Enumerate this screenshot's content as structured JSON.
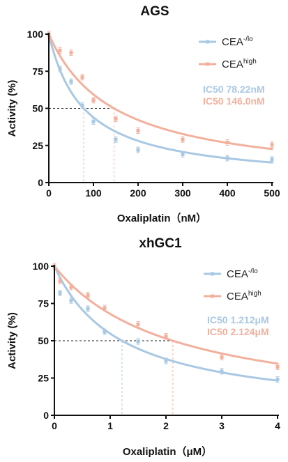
{
  "colors": {
    "low": "#a9c8e3",
    "high": "#f3b09c",
    "axis": "#111111"
  },
  "chart_data": [
    {
      "type": "scatter",
      "title": "AGS",
      "xlabel": "Oxaliplatin（nM）",
      "ylabel": "Activity (%)",
      "xlim": [
        0,
        500
      ],
      "ylim": [
        0,
        100
      ],
      "xticks": [
        "0",
        "100",
        "200",
        "300",
        "400",
        "500"
      ],
      "yticks": [
        "0",
        "25",
        "50",
        "75",
        "100"
      ],
      "legend_position": "top-right",
      "series": [
        {
          "name": "CEA",
          "sup": "-/lo",
          "color": "low",
          "ic50": 78.22,
          "ic50_label": "IC50 78.22nM",
          "points": [
            [
              0,
              100
            ],
            [
              25,
              76.5
            ],
            [
              50,
              68
            ],
            [
              75,
              52
            ],
            [
              100,
              41
            ],
            [
              150,
              29
            ],
            [
              200,
              22
            ],
            [
              300,
              19
            ],
            [
              400,
              16.5
            ],
            [
              500,
              15.5
            ]
          ]
        },
        {
          "name": "CEA",
          "sup": "high",
          "color": "high",
          "ic50": 146.0,
          "ic50_label": "IC50 146.0nM",
          "points": [
            [
              0,
              100
            ],
            [
              25,
              89
            ],
            [
              50,
              87.5
            ],
            [
              75,
              71
            ],
            [
              100,
              55.5
            ],
            [
              150,
              43
            ],
            [
              200,
              35
            ],
            [
              300,
              29
            ],
            [
              400,
              27
            ],
            [
              500,
              25.5
            ]
          ]
        }
      ]
    },
    {
      "type": "scatter",
      "title": "xhGC1",
      "xlabel": "Oxaliplatin（μM）",
      "ylabel": "Activity (%)",
      "xlim": [
        0,
        4
      ],
      "ylim": [
        0,
        100
      ],
      "xticks": [
        "0",
        "1",
        "2",
        "3",
        "4"
      ],
      "yticks": [
        "0",
        "25",
        "50",
        "75",
        "100"
      ],
      "legend_position": "top-right",
      "series": [
        {
          "name": "CEA",
          "sup": "-/lo",
          "color": "low",
          "ic50": 1.212,
          "ic50_label": "IC50 1.212μM",
          "points": [
            [
              0,
              100
            ],
            [
              0.1,
              82
            ],
            [
              0.3,
              77
            ],
            [
              0.6,
              71.5
            ],
            [
              0.9,
              56
            ],
            [
              1.5,
              49.5
            ],
            [
              2,
              36.5
            ],
            [
              3,
              29.5
            ],
            [
              4,
              24
            ]
          ]
        },
        {
          "name": "CEA",
          "sup": "high",
          "color": "high",
          "ic50": 2.124,
          "ic50_label": "IC50 2.124μM",
          "points": [
            [
              0,
              100
            ],
            [
              0.1,
              90
            ],
            [
              0.3,
              86
            ],
            [
              0.6,
              80.5
            ],
            [
              0.9,
              72
            ],
            [
              1.5,
              61
            ],
            [
              2,
              53
            ],
            [
              3,
              39
            ],
            [
              4,
              32.5
            ]
          ]
        }
      ]
    }
  ]
}
